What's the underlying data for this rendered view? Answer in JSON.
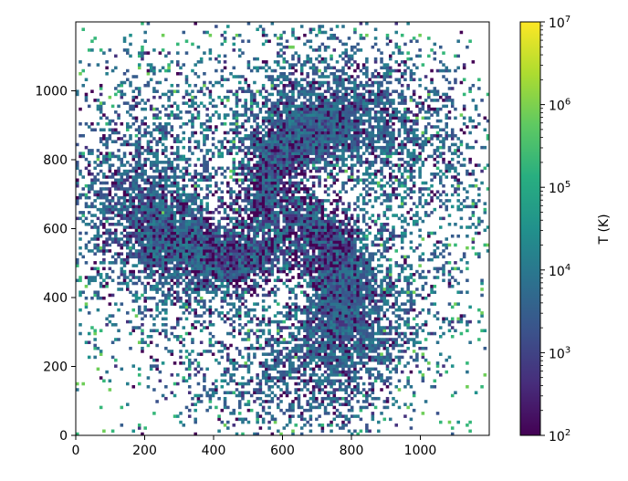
{
  "chart_data": {
    "type": "heatmap",
    "title": "",
    "xlabel": "",
    "ylabel": "",
    "xlim": [
      0,
      1200
    ],
    "ylim": [
      0,
      1200
    ],
    "x_ticks": [
      0,
      200,
      400,
      600,
      800,
      1000
    ],
    "y_ticks": [
      0,
      200,
      400,
      600,
      800,
      1000
    ],
    "x_tick_labels": [
      "0",
      "200",
      "400",
      "600",
      "800",
      "1000"
    ],
    "y_tick_labels": [
      "0",
      "200",
      "400",
      "600",
      "800",
      "1000"
    ],
    "colorbar": {
      "label": "T (K)",
      "scale": "log",
      "range": [
        100,
        10000000
      ],
      "colormap": "viridis",
      "ticks": [
        {
          "base": "10",
          "exp": "2",
          "value": 100
        },
        {
          "base": "10",
          "exp": "3",
          "value": 1000
        },
        {
          "base": "10",
          "exp": "4",
          "value": 10000
        },
        {
          "base": "10",
          "exp": "5",
          "value": 100000
        },
        {
          "base": "10",
          "exp": "6",
          "value": 1000000
        },
        {
          "base": "10",
          "exp": "7",
          "value": 10000000
        }
      ]
    },
    "structure": {
      "kind": "spiral galaxy gas temperature map",
      "center": [
        590,
        610
      ],
      "arms": 3,
      "dominant_temperature_K": 10000,
      "cold_lanes_temperature_K": 300,
      "background": "mostly empty (white) with sparse hot 1e5-1e6 K pixels"
    },
    "grid": false,
    "legend": "none"
  },
  "colors": {
    "background": "#ffffff",
    "axis": "#000000",
    "viridis_low": "#440154",
    "viridis_mid": "#21918c",
    "viridis_high": "#fde725"
  }
}
